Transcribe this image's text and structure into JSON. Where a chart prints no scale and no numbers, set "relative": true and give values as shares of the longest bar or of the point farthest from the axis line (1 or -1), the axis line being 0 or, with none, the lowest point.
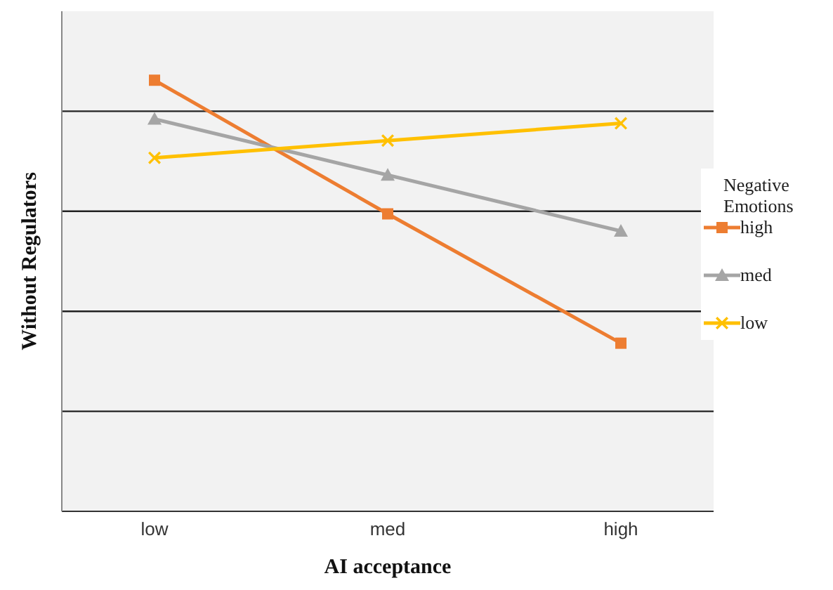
{
  "chart_data": {
    "type": "line",
    "xlabel": "AI acceptance",
    "ylabel": "Without Regulators",
    "legend_title": "Negative Emotions",
    "categories": [
      "low",
      "med",
      "high"
    ],
    "relative": true,
    "grid": "y",
    "legend": "right",
    "series": [
      {
        "name": "high",
        "color": "#ed7d31",
        "marker": "square",
        "values": [
          1,
          0.69,
          0.39
        ]
      },
      {
        "name": "med",
        "color": "#a5a5a5",
        "marker": "triangle",
        "values": [
          0.91,
          0.78,
          0.65
        ]
      },
      {
        "name": "low",
        "color": "#ffc000",
        "marker": "cross",
        "values": [
          0.82,
          0.86,
          0.9
        ]
      }
    ]
  }
}
